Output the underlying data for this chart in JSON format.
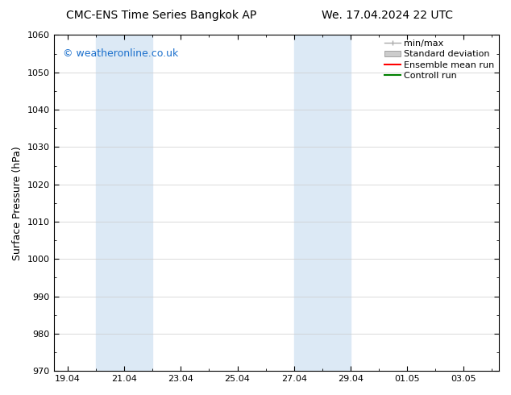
{
  "title_left": "CMC-ENS Time Series Bangkok AP",
  "title_right": "We. 17.04.2024 22 UTC",
  "ylabel": "Surface Pressure (hPa)",
  "ylim": [
    970,
    1060
  ],
  "yticks": [
    970,
    980,
    990,
    1000,
    1010,
    1020,
    1030,
    1040,
    1050,
    1060
  ],
  "watermark": "© weatheronline.co.uk",
  "watermark_color": "#1a6fcc",
  "bg_color": "#ffffff",
  "plot_bg_color": "#ffffff",
  "shaded_bands": [
    {
      "x_start": 20.0,
      "x_end": 22.0
    },
    {
      "x_start": 27.0,
      "x_end": 29.0
    }
  ],
  "shaded_color": "#dce9f5",
  "xtick_labels": [
    "19.04",
    "21.04",
    "23.04",
    "25.04",
    "27.04",
    "29.04",
    "01.05",
    "03.05"
  ],
  "xtick_positions": [
    19.0,
    21.0,
    23.0,
    25.0,
    27.0,
    29.0,
    31.0,
    33.0
  ],
  "x_min": 18.5,
  "x_max": 34.25,
  "legend_items": [
    {
      "label": "min/max",
      "color": "#aaaaaa",
      "style": "minmax"
    },
    {
      "label": "Standard deviation",
      "color": "#cccccc",
      "style": "stddev"
    },
    {
      "label": "Ensemble mean run",
      "color": "#ff0000",
      "style": "line"
    },
    {
      "label": "Controll run",
      "color": "#008000",
      "style": "line"
    }
  ],
  "font_size_title": 10,
  "font_size_axis": 9,
  "font_size_tick": 8,
  "font_size_legend": 8,
  "font_size_watermark": 9,
  "tick_color": "#000000",
  "axis_color": "#000000",
  "grid_color": "#cccccc"
}
